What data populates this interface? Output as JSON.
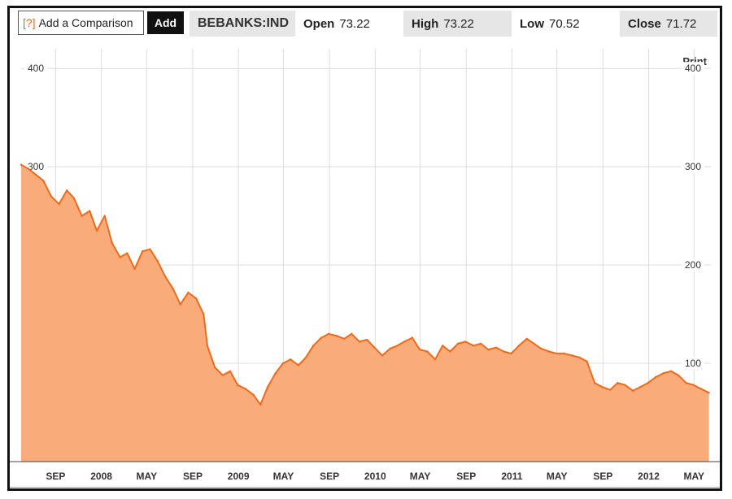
{
  "toolbar": {
    "help_label": "[?]",
    "comparison_label": "Add a Comparison",
    "add_label": "Add",
    "ticker": "BEBANKS:IND",
    "open_label": "Open",
    "open_value": "73.22",
    "high_label": "High",
    "high_value": "73.22",
    "low_label": "Low",
    "low_value": "70.52",
    "close_label": "Close",
    "close_value": "71.72"
  },
  "print_label": "Print",
  "colors": {
    "line": "#f06a1a",
    "fill": "#f9ab7a",
    "grid": "#dddddd"
  },
  "chart_data": {
    "type": "area",
    "ylim": [
      0,
      420
    ],
    "yticks": [
      100,
      200,
      300,
      400
    ],
    "xticks": [
      {
        "label": "SEP",
        "x": "2007-09"
      },
      {
        "label": "2008",
        "x": "2008-01"
      },
      {
        "label": "MAY",
        "x": "2008-05"
      },
      {
        "label": "SEP",
        "x": "2008-09"
      },
      {
        "label": "2009",
        "x": "2009-01"
      },
      {
        "label": "MAY",
        "x": "2009-05"
      },
      {
        "label": "SEP",
        "x": "2009-09"
      },
      {
        "label": "2010",
        "x": "2010-01"
      },
      {
        "label": "MAY",
        "x": "2010-05"
      },
      {
        "label": "SEP",
        "x": "2010-09"
      },
      {
        "label": "2011",
        "x": "2011-01"
      },
      {
        "label": "MAY",
        "x": "2011-05"
      },
      {
        "label": "SEP",
        "x": "2011-09"
      },
      {
        "label": "2012",
        "x": "2012-01"
      },
      {
        "label": "MAY",
        "x": "2012-05"
      }
    ],
    "series": [
      {
        "x": [
          "2007-06-01",
          "2007-06-20",
          "2007-07-10",
          "2007-07-30",
          "2007-08-20",
          "2007-09-10",
          "2007-10-01",
          "2007-10-20",
          "2007-11-10",
          "2007-12-01",
          "2007-12-20",
          "2008-01-10",
          "2008-01-30",
          "2008-02-20",
          "2008-03-10",
          "2008-03-30",
          "2008-04-20",
          "2008-05-10",
          "2008-05-30",
          "2008-06-20",
          "2008-07-10",
          "2008-07-30",
          "2008-08-20",
          "2008-09-10",
          "2008-09-30",
          "2008-10-10",
          "2008-10-30",
          "2008-11-20",
          "2008-12-10",
          "2008-12-30",
          "2009-01-20",
          "2009-02-10",
          "2009-03-01",
          "2009-03-20",
          "2009-04-10",
          "2009-04-30",
          "2009-05-20",
          "2009-06-10",
          "2009-06-30",
          "2009-07-20",
          "2009-08-10",
          "2009-08-30",
          "2009-09-20",
          "2009-10-10",
          "2009-10-30",
          "2009-11-20",
          "2009-12-10",
          "2009-12-30",
          "2010-01-20",
          "2010-02-10",
          "2010-03-01",
          "2010-03-20",
          "2010-04-10",
          "2010-04-30",
          "2010-05-20",
          "2010-06-10",
          "2010-06-30",
          "2010-07-20",
          "2010-08-10",
          "2010-08-30",
          "2010-09-20",
          "2010-10-10",
          "2010-10-30",
          "2010-11-20",
          "2010-12-10",
          "2010-12-30",
          "2011-01-20",
          "2011-02-10",
          "2011-03-01",
          "2011-03-20",
          "2011-04-10",
          "2011-04-30",
          "2011-05-20",
          "2011-06-10",
          "2011-06-30",
          "2011-07-20",
          "2011-08-10",
          "2011-08-30",
          "2011-09-20",
          "2011-10-10",
          "2011-10-30",
          "2011-11-20",
          "2011-12-10",
          "2011-12-30",
          "2012-01-20",
          "2012-02-10",
          "2012-03-01",
          "2012-03-20",
          "2012-04-10",
          "2012-04-30",
          "2012-05-20",
          "2012-06-10"
        ],
        "values": [
          302,
          298,
          292,
          286,
          270,
          262,
          276,
          268,
          250,
          255,
          235,
          250,
          222,
          208,
          212,
          196,
          214,
          216,
          204,
          188,
          176,
          160,
          172,
          166,
          150,
          118,
          96,
          88,
          92,
          78,
          74,
          68,
          58,
          76,
          90,
          100,
          104,
          98,
          106,
          118,
          126,
          130,
          128,
          125,
          130,
          122,
          124,
          116,
          108,
          115,
          118,
          122,
          126,
          114,
          112,
          104,
          118,
          112,
          120,
          122,
          118,
          120,
          114,
          116,
          112,
          110,
          118,
          125,
          120,
          115,
          112,
          110,
          110,
          108,
          106,
          102,
          80,
          76,
          73,
          80,
          78,
          72,
          76,
          80,
          86,
          90,
          92,
          88,
          80,
          78,
          74,
          70
        ]
      }
    ]
  }
}
